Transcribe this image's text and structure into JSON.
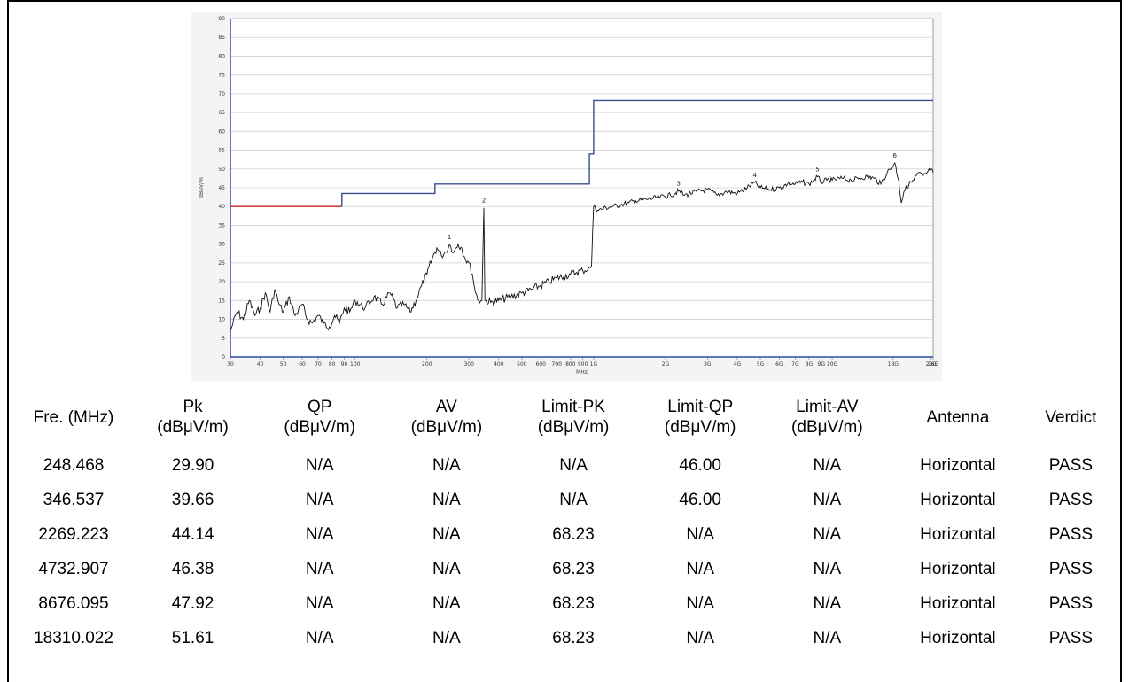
{
  "chart_data": {
    "type": "line",
    "x_scale": "log",
    "xlabel": "MHz",
    "ylabel": "dBuV/m",
    "xlim": [
      30,
      26500
    ],
    "ylim": [
      0,
      90
    ],
    "y_ticks": [
      0,
      5,
      10,
      15,
      20,
      25,
      30,
      35,
      40,
      45,
      50,
      55,
      60,
      65,
      70,
      75,
      80,
      85,
      90
    ],
    "x_ticks": [
      {
        "v": 30,
        "l": "30"
      },
      {
        "v": 40,
        "l": "40"
      },
      {
        "v": 50,
        "l": "50"
      },
      {
        "v": 60,
        "l": "60"
      },
      {
        "v": 70,
        "l": "70"
      },
      {
        "v": 80,
        "l": "80"
      },
      {
        "v": 90,
        "l": "90"
      },
      {
        "v": 100,
        "l": "100"
      },
      {
        "v": 200,
        "l": "200"
      },
      {
        "v": 300,
        "l": "300"
      },
      {
        "v": 400,
        "l": "400"
      },
      {
        "v": 500,
        "l": "500"
      },
      {
        "v": 600,
        "l": "600"
      },
      {
        "v": 700,
        "l": "700"
      },
      {
        "v": 800,
        "l": "800"
      },
      {
        "v": 900,
        "l": "900"
      },
      {
        "v": 1000,
        "l": "1G"
      },
      {
        "v": 2000,
        "l": "2G"
      },
      {
        "v": 3000,
        "l": "3G"
      },
      {
        "v": 4000,
        "l": "4G"
      },
      {
        "v": 5000,
        "l": "5G"
      },
      {
        "v": 6000,
        "l": "6G"
      },
      {
        "v": 7000,
        "l": "7G"
      },
      {
        "v": 8000,
        "l": "8G"
      },
      {
        "v": 9000,
        "l": "9G"
      },
      {
        "v": 10000,
        "l": "10G"
      },
      {
        "v": 18000,
        "l": "18G"
      },
      {
        "v": 26000,
        "l": "26G"
      },
      {
        "v": 26500,
        "l": "26G"
      }
    ],
    "grid": true,
    "series": [
      {
        "name": "",
        "color": "#111111",
        "points": [
          [
            30,
            7
          ],
          [
            32,
            12
          ],
          [
            34,
            10
          ],
          [
            36,
            15
          ],
          [
            38,
            11
          ],
          [
            40,
            13
          ],
          [
            42,
            17
          ],
          [
            44,
            12
          ],
          [
            46,
            18
          ],
          [
            48,
            14
          ],
          [
            50,
            12
          ],
          [
            53,
            16
          ],
          [
            56,
            11
          ],
          [
            60,
            14
          ],
          [
            63,
            10
          ],
          [
            66,
            9
          ],
          [
            70,
            11
          ],
          [
            74,
            9
          ],
          [
            78,
            8
          ],
          [
            82,
            11
          ],
          [
            86,
            9
          ],
          [
            90,
            13
          ],
          [
            95,
            12
          ],
          [
            100,
            15
          ],
          [
            110,
            13
          ],
          [
            120,
            16
          ],
          [
            130,
            14
          ],
          [
            140,
            17
          ],
          [
            150,
            13
          ],
          [
            160,
            14
          ],
          [
            170,
            12
          ],
          [
            180,
            15
          ],
          [
            190,
            19
          ],
          [
            200,
            22
          ],
          [
            210,
            26
          ],
          [
            220,
            29
          ],
          [
            230,
            27
          ],
          [
            240,
            28
          ],
          [
            248.468,
            29.9
          ],
          [
            260,
            28
          ],
          [
            270,
            30
          ],
          [
            280,
            29
          ],
          [
            290,
            26
          ],
          [
            300,
            25
          ],
          [
            310,
            22
          ],
          [
            320,
            17
          ],
          [
            330,
            15
          ],
          [
            340,
            15
          ],
          [
            346.537,
            39.66
          ],
          [
            350,
            15
          ],
          [
            370,
            14.5
          ],
          [
            400,
            15
          ],
          [
            450,
            16
          ],
          [
            500,
            17
          ],
          [
            550,
            18
          ],
          [
            600,
            19
          ],
          [
            650,
            20
          ],
          [
            700,
            21
          ],
          [
            750,
            21.5
          ],
          [
            800,
            22
          ],
          [
            850,
            22.5
          ],
          [
            900,
            23
          ],
          [
            950,
            23.5
          ],
          [
            980,
            24
          ],
          [
            990,
            33
          ],
          [
            1000,
            40
          ],
          [
            1050,
            39
          ],
          [
            1100,
            39.5
          ],
          [
            1200,
            40
          ],
          [
            1300,
            40.5
          ],
          [
            1400,
            41
          ],
          [
            1500,
            41.5
          ],
          [
            1700,
            42
          ],
          [
            1900,
            42.5
          ],
          [
            2100,
            43
          ],
          [
            2269.223,
            44.14
          ],
          [
            2400,
            43
          ],
          [
            2700,
            44
          ],
          [
            3000,
            44.5
          ],
          [
            3300,
            43
          ],
          [
            3600,
            44
          ],
          [
            4000,
            43.5
          ],
          [
            4400,
            45
          ],
          [
            4732.907,
            46.38
          ],
          [
            5000,
            45
          ],
          [
            5500,
            44.5
          ],
          [
            6000,
            45
          ],
          [
            6500,
            46
          ],
          [
            7000,
            46
          ],
          [
            7500,
            46.5
          ],
          [
            8000,
            46
          ],
          [
            8676.095,
            47.92
          ],
          [
            9000,
            46.5
          ],
          [
            9500,
            47
          ],
          [
            10000,
            47
          ],
          [
            11000,
            47.5
          ],
          [
            12000,
            47
          ],
          [
            13000,
            47.5
          ],
          [
            14000,
            48
          ],
          [
            15000,
            47.5
          ],
          [
            16000,
            46
          ],
          [
            17000,
            49
          ],
          [
            18310.022,
            51.61
          ],
          [
            19000,
            47
          ],
          [
            19500,
            41
          ],
          [
            20000,
            44
          ],
          [
            21000,
            46
          ],
          [
            22000,
            47
          ],
          [
            23000,
            49
          ],
          [
            24000,
            48
          ],
          [
            25000,
            49
          ],
          [
            26000,
            50
          ],
          [
            26500,
            49
          ]
        ]
      }
    ],
    "limit_lines": [
      {
        "color": "#cc2222",
        "points": [
          [
            30,
            40
          ],
          [
            88,
            40
          ]
        ]
      },
      {
        "color": "#3a4d8f",
        "points": [
          [
            88,
            40
          ],
          [
            88,
            43.5
          ],
          [
            216,
            43.5
          ],
          [
            216,
            46
          ],
          [
            960,
            46
          ],
          [
            960,
            54
          ],
          [
            1000,
            54
          ],
          [
            1000,
            68.23
          ],
          [
            26500,
            68.23
          ]
        ]
      }
    ],
    "markers": [
      {
        "label": "1",
        "x": 248.468,
        "y": 29.9
      },
      {
        "label": "2",
        "x": 346.537,
        "y": 39.66
      },
      {
        "label": "3",
        "x": 2269.223,
        "y": 44.14
      },
      {
        "label": "4",
        "x": 4732.907,
        "y": 46.38
      },
      {
        "label": "5",
        "x": 8676.095,
        "y": 47.92
      },
      {
        "label": "6",
        "x": 18310.022,
        "y": 51.61
      }
    ]
  },
  "table": {
    "headers": [
      [
        "Fre. (MHz)"
      ],
      [
        "Pk",
        "(dBμV/m)"
      ],
      [
        "QP",
        "(dBμV/m)"
      ],
      [
        "AV",
        "(dBμV/m)"
      ],
      [
        "Limit-PK",
        "(dBμV/m)"
      ],
      [
        "Limit-QP",
        "(dBμV/m)"
      ],
      [
        "Limit-AV",
        "(dBμV/m)"
      ],
      [
        "Antenna"
      ],
      [
        "Verdict"
      ]
    ],
    "rows": [
      [
        "248.468",
        "29.90",
        "N/A",
        "N/A",
        "N/A",
        "46.00",
        "N/A",
        "Horizontal",
        "PASS"
      ],
      [
        "346.537",
        "39.66",
        "N/A",
        "N/A",
        "N/A",
        "46.00",
        "N/A",
        "Horizontal",
        "PASS"
      ],
      [
        "2269.223",
        "44.14",
        "N/A",
        "N/A",
        "68.23",
        "N/A",
        "N/A",
        "Horizontal",
        "PASS"
      ],
      [
        "4732.907",
        "46.38",
        "N/A",
        "N/A",
        "68.23",
        "N/A",
        "N/A",
        "Horizontal",
        "PASS"
      ],
      [
        "8676.095",
        "47.92",
        "N/A",
        "N/A",
        "68.23",
        "N/A",
        "N/A",
        "Horizontal",
        "PASS"
      ],
      [
        "18310.022",
        "51.61",
        "N/A",
        "N/A",
        "68.23",
        "N/A",
        "N/A",
        "Horizontal",
        "PASS"
      ]
    ]
  }
}
